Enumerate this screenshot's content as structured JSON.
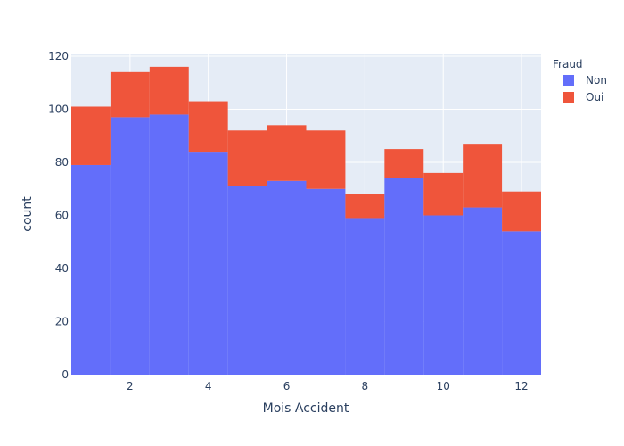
{
  "chart_data": {
    "type": "bar",
    "barmode": "stacked histogram",
    "xlabel": "Mois Accident",
    "ylabel": "count",
    "categories": [
      1,
      2,
      3,
      4,
      5,
      6,
      7,
      8,
      9,
      10,
      11,
      12
    ],
    "x_ticks": [
      2,
      4,
      6,
      8,
      10,
      12
    ],
    "y_ticks": [
      0,
      20,
      40,
      60,
      80,
      100,
      120
    ],
    "xlim": [
      0.5,
      12.5
    ],
    "ylim": [
      0,
      121
    ],
    "grid": true,
    "legend": {
      "title": "Fraud",
      "placement": "top-right"
    },
    "series": [
      {
        "name": "Non",
        "color": "#636efa",
        "values": [
          79,
          97,
          98,
          84,
          71,
          73,
          70,
          59,
          74,
          60,
          63,
          54
        ]
      },
      {
        "name": "Oui",
        "color": "#ef553b",
        "values": [
          22,
          17,
          18,
          19,
          21,
          21,
          22,
          9,
          11,
          16,
          24,
          15
        ]
      }
    ],
    "plot_bgcolor": "#e5ecf6"
  }
}
